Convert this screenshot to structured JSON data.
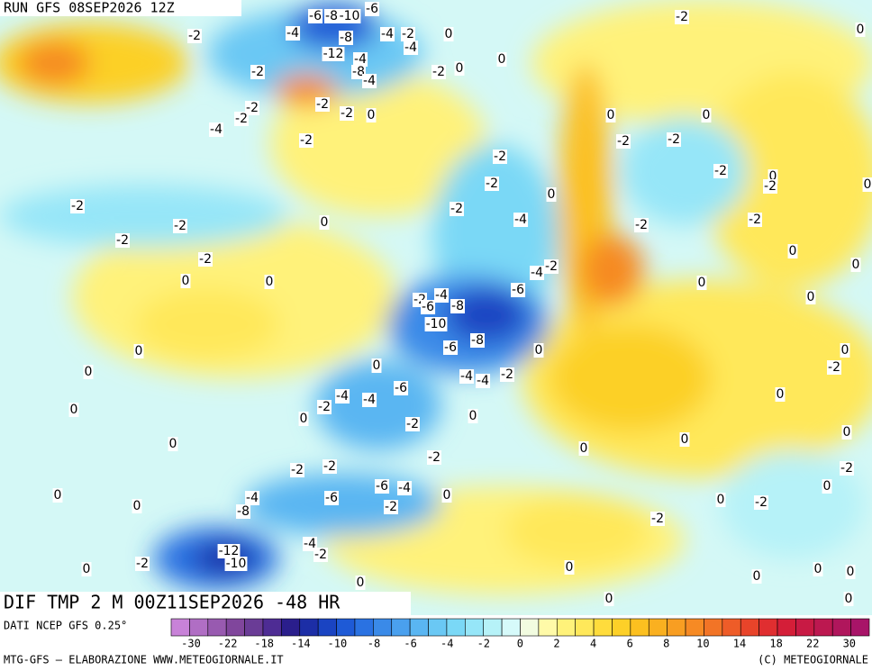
{
  "header": {
    "run": "RUN GFS 08SEP2026 12Z"
  },
  "map": {
    "title": "DIF TMP 2 M 00Z11SEP2026 -48 HR",
    "contour_labels": [
      -2,
      -6,
      -8,
      -10,
      -6,
      -4,
      -8,
      -4,
      -2,
      0,
      -12,
      -4,
      -8,
      -4,
      -4,
      -2,
      0,
      0,
      -2,
      -2,
      -4,
      -2,
      -2,
      -2,
      0,
      -2,
      -2,
      0,
      0,
      0,
      -2,
      -2,
      -2,
      0,
      -2,
      0,
      -2,
      -2,
      0,
      -2,
      -4,
      -2,
      -2,
      -2,
      -2,
      -2,
      0,
      -2,
      0,
      0,
      0,
      0,
      -4,
      -2,
      -6,
      0,
      0,
      -2,
      -4,
      -6,
      -8,
      -10,
      -8,
      -6,
      0,
      0,
      0,
      0,
      -2,
      0,
      -4,
      -4,
      -2,
      -6,
      -4,
      -4,
      0,
      -2,
      0,
      0,
      -2,
      0,
      0,
      0,
      0,
      0,
      -2,
      -2,
      -2,
      -2,
      0,
      -6,
      -4,
      0,
      0,
      -4,
      -6,
      -2,
      0,
      -2,
      0,
      -8,
      -2,
      -4,
      -2,
      -12,
      -10,
      -2,
      0,
      0,
      0,
      0,
      0,
      0,
      0,
      0
    ]
  },
  "legend": {
    "source": "DATI NCEP GFS 0.25°",
    "colors": [
      "#c882d8",
      "#b06ec4",
      "#985ab0",
      "#80469c",
      "#6a3c96",
      "#4e2c94",
      "#2a1e8c",
      "#1c2ea6",
      "#1a44c2",
      "#1e5ad6",
      "#2a72e2",
      "#3a8ae8",
      "#4aa0ee",
      "#5ab6f2",
      "#6ac8f4",
      "#7ad8f6",
      "#96e6f8",
      "#b6f2f8",
      "#d6fafa",
      "#f2fce0",
      "#fffaa8",
      "#fff27a",
      "#ffe85a",
      "#ffdc3c",
      "#fdd028",
      "#fcc020",
      "#fab020",
      "#f89e22",
      "#f68a24",
      "#f27426",
      "#ee5c28",
      "#e8442a",
      "#e02e30",
      "#d41e38",
      "#c81a44",
      "#bc1850",
      "#b0165c",
      "#a81468"
    ],
    "labels": [
      -30,
      -22,
      -18,
      -14,
      -10,
      -8,
      -6,
      -4,
      -2,
      0,
      2,
      4,
      6,
      8,
      10,
      14,
      18,
      22,
      30
    ]
  },
  "footer": {
    "left": "MTG-GFS — ELABORAZIONE WWW.METEOGIORNALE.IT",
    "right": "(C) METEOGIORNALE"
  }
}
